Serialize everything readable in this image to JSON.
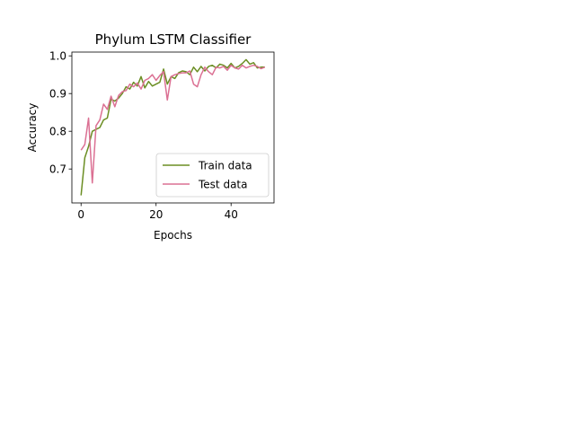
{
  "chart_data": {
    "type": "line",
    "title": "Phylum LSTM Classifier",
    "xlabel": "Epochs",
    "ylabel": "Accuracy",
    "xlim": [
      -2.45,
      51.45
    ],
    "ylim": [
      0.61,
      1.01
    ],
    "xticks": [
      0,
      20,
      40
    ],
    "xtick_labels": [
      "0",
      "20",
      "40"
    ],
    "yticks": [
      0.7,
      0.8,
      0.9,
      1.0
    ],
    "ytick_labels": [
      "0.7",
      "0.8",
      "0.9",
      "1.0"
    ],
    "grid": false,
    "legend_position": "lower-right",
    "x": [
      0,
      1,
      2,
      3,
      4,
      5,
      6,
      7,
      8,
      9,
      10,
      11,
      12,
      13,
      14,
      15,
      16,
      17,
      18,
      19,
      20,
      21,
      22,
      23,
      24,
      25,
      26,
      27,
      28,
      29,
      30,
      31,
      32,
      33,
      34,
      35,
      36,
      37,
      38,
      39,
      40,
      41,
      42,
      43,
      44,
      45,
      46,
      47,
      48,
      49
    ],
    "series": [
      {
        "name": "Train data",
        "color": "#6b8e23",
        "values": [
          0.63,
          0.73,
          0.76,
          0.8,
          0.805,
          0.81,
          0.83,
          0.835,
          0.885,
          0.88,
          0.888,
          0.9,
          0.918,
          0.912,
          0.93,
          0.92,
          0.945,
          0.915,
          0.932,
          0.92,
          0.925,
          0.93,
          0.965,
          0.925,
          0.945,
          0.94,
          0.955,
          0.96,
          0.958,
          0.95,
          0.97,
          0.958,
          0.972,
          0.96,
          0.972,
          0.975,
          0.968,
          0.978,
          0.975,
          0.968,
          0.98,
          0.968,
          0.972,
          0.98,
          0.99,
          0.978,
          0.982,
          0.968,
          0.97,
          0.97
        ]
      },
      {
        "name": "Test data",
        "color": "#db7093",
        "values": [
          0.75,
          0.765,
          0.835,
          0.663,
          0.815,
          0.83,
          0.872,
          0.858,
          0.893,
          0.865,
          0.895,
          0.905,
          0.908,
          0.925,
          0.918,
          0.928,
          0.912,
          0.935,
          0.94,
          0.95,
          0.935,
          0.948,
          0.958,
          0.883,
          0.945,
          0.95,
          0.953,
          0.955,
          0.955,
          0.96,
          0.925,
          0.918,
          0.95,
          0.97,
          0.958,
          0.95,
          0.97,
          0.968,
          0.972,
          0.962,
          0.975,
          0.968,
          0.965,
          0.975,
          0.968,
          0.972,
          0.975,
          0.972,
          0.966,
          0.97
        ]
      }
    ]
  }
}
